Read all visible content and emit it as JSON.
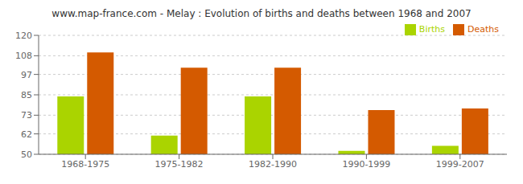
{
  "chart_data": {
    "type": "bar",
    "title": "www.map-france.com - Melay : Evolution of births and deaths between 1968 and 2007",
    "categories": [
      "1968-1975",
      "1975-1982",
      "1982-1990",
      "1990-1999",
      "1999-2007"
    ],
    "series": [
      {
        "name": "Births",
        "color": "#aad400",
        "values": [
          84,
          61,
          84,
          52,
          55
        ]
      },
      {
        "name": "Deaths",
        "color": "#d45a00",
        "values": [
          110,
          101,
          101,
          76,
          77
        ]
      }
    ],
    "ylim": [
      50,
      120
    ],
    "yticks": [
      50,
      62,
      73,
      85,
      97,
      108,
      120
    ],
    "grid": true,
    "legend": "upper right"
  }
}
